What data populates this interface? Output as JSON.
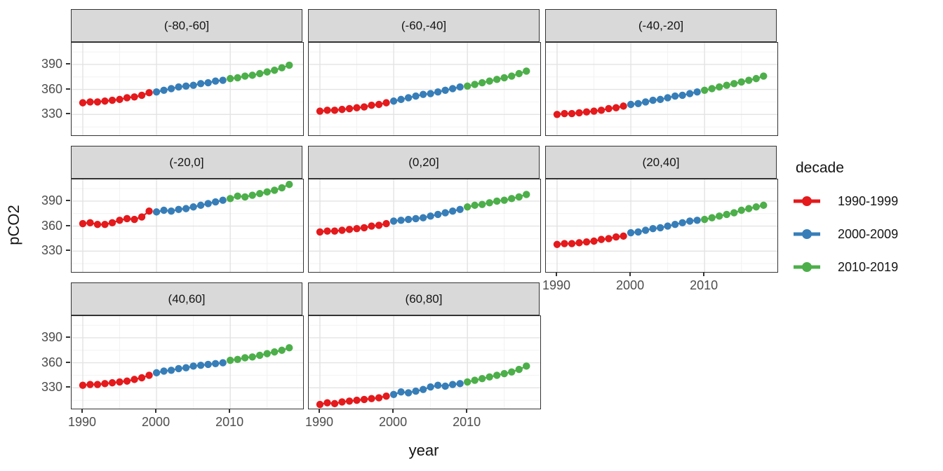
{
  "chart_data": {
    "type": "scatter",
    "description": "Faceted scatter/line chart of ocean pCO2 by year, one panel per latitude band, points colored by decade",
    "x_variable": "year",
    "y_variable": "pCO2",
    "facet_variable": "latitude band",
    "x": [
      1990,
      1991,
      1992,
      1993,
      1994,
      1995,
      1996,
      1997,
      1998,
      1999,
      2000,
      2001,
      2002,
      2003,
      2004,
      2005,
      2006,
      2007,
      2008,
      2009,
      2010,
      2011,
      2012,
      2013,
      2014,
      2015,
      2016,
      2017,
      2018
    ],
    "facets": [
      {
        "label": "(-80,-60]",
        "values": [
          344,
          345,
          345,
          346,
          347,
          348,
          350,
          351,
          353,
          356,
          357,
          359,
          361,
          363,
          364,
          365,
          367,
          368,
          370,
          371,
          373,
          374,
          376,
          377,
          379,
          381,
          383,
          386,
          389
        ]
      },
      {
        "label": "(-60,-40]",
        "values": [
          334,
          335,
          335,
          336,
          337,
          338,
          339,
          341,
          342,
          344,
          346,
          348,
          350,
          352,
          354,
          355,
          357,
          359,
          361,
          363,
          364,
          366,
          368,
          370,
          372,
          374,
          376,
          379,
          382
        ]
      },
      {
        "label": "(-40,-20]",
        "values": [
          330,
          331,
          331,
          332,
          333,
          334,
          335,
          337,
          338,
          340,
          342,
          343,
          345,
          347,
          348,
          350,
          352,
          353,
          355,
          357,
          359,
          361,
          363,
          365,
          367,
          369,
          371,
          373,
          376
        ]
      },
      {
        "label": "(-20,0]",
        "values": [
          363,
          364,
          362,
          362,
          364,
          367,
          369,
          368,
          371,
          378,
          377,
          379,
          378,
          380,
          381,
          383,
          385,
          387,
          389,
          391,
          393,
          396,
          395,
          397,
          399,
          401,
          403,
          406,
          410
        ]
      },
      {
        "label": "(0,20]",
        "values": [
          353,
          354,
          354,
          355,
          356,
          357,
          358,
          360,
          361,
          363,
          366,
          367,
          368,
          369,
          370,
          372,
          374,
          376,
          378,
          380,
          383,
          385,
          386,
          388,
          390,
          391,
          393,
          395,
          398
        ]
      },
      {
        "label": "(20,40]",
        "values": [
          338,
          339,
          339,
          340,
          341,
          342,
          344,
          345,
          347,
          348,
          352,
          353,
          355,
          357,
          358,
          360,
          362,
          364,
          366,
          367,
          368,
          370,
          372,
          374,
          376,
          379,
          381,
          383,
          385
        ]
      },
      {
        "label": "(40,60]",
        "values": [
          333,
          334,
          334,
          335,
          336,
          337,
          338,
          340,
          342,
          345,
          348,
          350,
          351,
          353,
          354,
          356,
          357,
          358,
          359,
          360,
          363,
          364,
          366,
          367,
          369,
          371,
          373,
          375,
          378
        ]
      },
      {
        "label": "(60,80]",
        "values": [
          310,
          312,
          311,
          313,
          314,
          315,
          316,
          317,
          318,
          320,
          322,
          325,
          324,
          326,
          328,
          331,
          333,
          332,
          334,
          335,
          337,
          339,
          341,
          343,
          345,
          347,
          349,
          352,
          356
        ]
      }
    ],
    "series_variable": "decade",
    "decades": [
      {
        "label": "1990-1999",
        "color": "#E41A1C",
        "start": 1990,
        "end": 1999
      },
      {
        "label": "2000-2009",
        "color": "#377EB8",
        "start": 2000,
        "end": 2009
      },
      {
        "label": "2010-2019",
        "color": "#4DAF4A",
        "start": 2010,
        "end": 2018
      }
    ],
    "axes": {
      "x_label": "year",
      "y_label": "pCO2",
      "x_ticks": [
        1990,
        2000,
        2010
      ],
      "x_minor_ticks": [
        1995,
        2005,
        2015
      ],
      "y_ticks": [
        330,
        360,
        390
      ],
      "y_minor_ticks": [
        315,
        345,
        375,
        405
      ],
      "xlim": [
        1988.48,
        2019.88
      ],
      "ylim": [
        305,
        416
      ],
      "grid": "on",
      "legend_position": "right"
    }
  },
  "legend": {
    "title": "decade",
    "items": [
      {
        "label": "1990-1999",
        "color": "#E41A1C"
      },
      {
        "label": "2000-2009",
        "color": "#377EB8"
      },
      {
        "label": "2010-2019",
        "color": "#4DAF4A"
      }
    ]
  },
  "theme": {
    "strip_bg": "#d9d9d9",
    "panel_border": "#333333",
    "grid_major": "#e3e3e3",
    "grid_minor": "#f2f2f2",
    "axis_text": "#4d4d4d",
    "title_text": "#141414"
  }
}
